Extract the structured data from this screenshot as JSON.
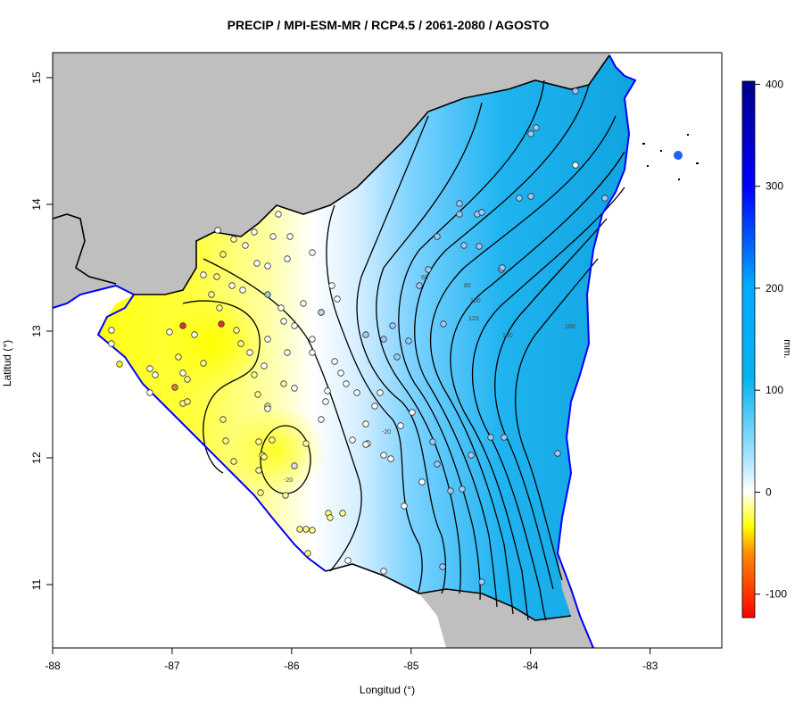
{
  "map": {
    "title": "PRECIP / MPI-ESM-MR / RCP4.5 / 2061-2080 / AGOSTO",
    "xlabel": "Longitud (°)",
    "ylabel": "Latitud (°)",
    "x_ticks": [
      "-88",
      "-87",
      "-86",
      "-85",
      "-84",
      "-83"
    ],
    "y_ticks": [
      "11",
      "12",
      "13",
      "14",
      "15"
    ],
    "extent": {
      "lon": [
        -88,
        -82.4
      ],
      "lat": [
        10.5,
        15.2
      ]
    },
    "land_color": "#bfbfbf",
    "coast_color": "#0000ff",
    "contour_labels": [
      "-20",
      "-20",
      "60",
      "80",
      "100",
      "120",
      "140",
      "160"
    ]
  },
  "colorbar": {
    "label": "mm.",
    "ticks": [
      "400",
      "300",
      "200",
      "100",
      "0",
      "-100"
    ],
    "range": [
      -123,
      403
    ],
    "colors": [
      "#ff0000",
      "#ffff00",
      "#ffffff",
      "#00bfff",
      "#0000ff",
      "#00008b"
    ]
  }
}
